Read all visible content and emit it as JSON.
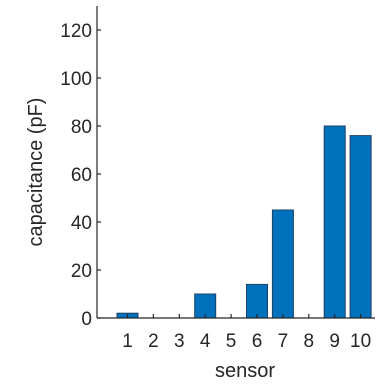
{
  "chart_data": {
    "type": "bar",
    "title": "",
    "xlabel": "sensor",
    "ylabel": "capacitance (pF)",
    "categories": [
      "1",
      "2",
      "3",
      "4",
      "5",
      "6",
      "7",
      "8",
      "9",
      "10"
    ],
    "values": [
      2,
      0,
      0,
      10,
      0,
      14,
      45,
      0,
      80,
      76
    ],
    "ylim": [
      0,
      130
    ],
    "yticks": [
      0,
      20,
      40,
      60,
      80,
      100,
      120
    ],
    "grid": false,
    "legend": "none",
    "bar_color": "#0072BD",
    "bar_edge_color": "#1f3f66",
    "axis_color": "#262626"
  }
}
